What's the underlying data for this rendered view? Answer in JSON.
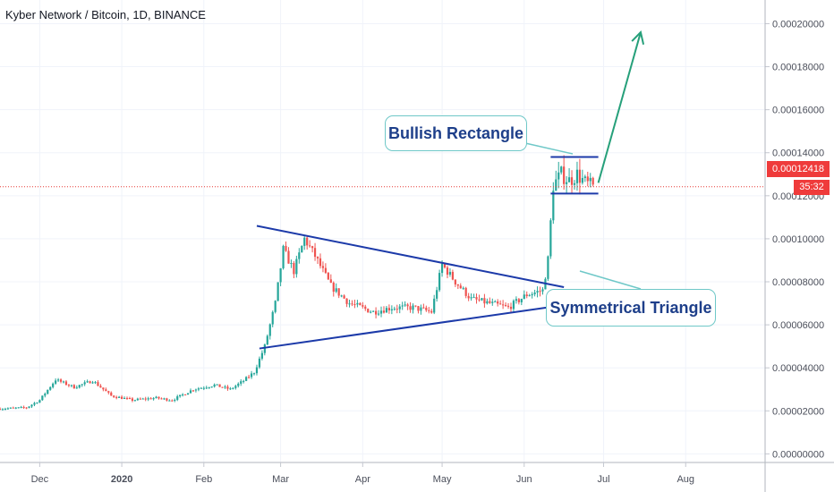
{
  "chart_title": "Kyber Network / Bitcoin, 1D, BINANCE",
  "colors": {
    "up": "#26a69a",
    "down": "#ef5350",
    "trendline": "#1c3aa9",
    "arrow": "#26a07a",
    "callout_border": "#6fc8c8",
    "price_line": "#e53935"
  },
  "chart_data": {
    "type": "candlestick",
    "symbol": "Kyber Network / Bitcoin",
    "interval": "1D",
    "exchange": "BINANCE",
    "y_axis": {
      "ticks": [
        "0.00000000",
        "0.00002000",
        "0.00004000",
        "0.00006000",
        "0.00008000",
        "0.00010000",
        "0.00012000",
        "0.00014000",
        "0.00016000",
        "0.00018000",
        "0.00020000"
      ],
      "range": [
        -4e-06,
        0.000211
      ]
    },
    "x_axis": {
      "ticks": [
        "Dec",
        "2020",
        "Feb",
        "Mar",
        "Apr",
        "May",
        "Jun",
        "Jul",
        "Aug"
      ],
      "range": [
        "2019-11-16",
        "2020-08-31"
      ]
    },
    "last_price": "0.00012418",
    "countdown": "35:32",
    "price_path": [
      [
        "2019-11-16",
        2.1e-05
      ],
      [
        "2019-11-26",
        2.15e-05
      ],
      [
        "2019-12-01",
        2.5e-05
      ],
      [
        "2019-12-07",
        3.45e-05
      ],
      [
        "2019-12-14",
        3.1e-05
      ],
      [
        "2019-12-21",
        3.4e-05
      ],
      [
        "2019-12-28",
        2.7e-05
      ],
      [
        "2020-01-05",
        2.5e-05
      ],
      [
        "2020-01-14",
        2.6e-05
      ],
      [
        "2020-01-20",
        2.5e-05
      ],
      [
        "2020-01-28",
        3e-05
      ],
      [
        "2020-02-05",
        3.2e-05
      ],
      [
        "2020-02-11",
        3e-05
      ],
      [
        "2020-02-16",
        3.4e-05
      ],
      [
        "2020-02-20",
        3.8e-05
      ],
      [
        "2020-02-24",
        5e-05
      ],
      [
        "2020-02-28",
        7e-05
      ],
      [
        "2020-03-02",
        9.5e-05
      ],
      [
        "2020-03-06",
        8.5e-05
      ],
      [
        "2020-03-10",
        0.0001
      ],
      [
        "2020-03-14",
        9.2e-05
      ],
      [
        "2020-03-20",
        7.8e-05
      ],
      [
        "2020-03-27",
        7e-05
      ],
      [
        "2020-04-05",
        6.6e-05
      ],
      [
        "2020-04-12",
        6.8e-05
      ],
      [
        "2020-04-20",
        6.8e-05
      ],
      [
        "2020-04-27",
        6.6e-05
      ],
      [
        "2020-05-01",
        8.8e-05
      ],
      [
        "2020-05-06",
        8e-05
      ],
      [
        "2020-05-12",
        7.2e-05
      ],
      [
        "2020-05-19",
        7e-05
      ],
      [
        "2020-05-26",
        6.8e-05
      ],
      [
        "2020-06-02",
        7.4e-05
      ],
      [
        "2020-06-08",
        7.6e-05
      ],
      [
        "2020-06-10",
        9e-05
      ],
      [
        "2020-06-12",
        0.000125
      ],
      [
        "2020-06-15",
        0.00013
      ],
      [
        "2020-06-18",
        0.000127
      ],
      [
        "2020-06-21",
        0.00013
      ],
      [
        "2020-06-24",
        0.000126
      ],
      [
        "2020-06-27",
        0.000124
      ]
    ],
    "annotations": [
      {
        "label": "Symmetrical Triangle",
        "upper_line": [
          [
            "2020-02-21",
            0.000106
          ],
          [
            "2020-06-16",
            7.75e-05
          ]
        ],
        "lower_line": [
          [
            "2020-02-22",
            4.9e-05
          ],
          [
            "2020-06-15",
            6.9e-05
          ]
        ]
      },
      {
        "label": "Bullish Rectangle",
        "top": 0.000138,
        "bottom": 0.000121,
        "start": "2020-06-11",
        "end": "2020-06-29"
      },
      {
        "label": "projection-arrow",
        "from": [
          "2020-06-29",
          0.000126
        ],
        "to": [
          "2020-07-15",
          0.000196
        ]
      }
    ]
  }
}
